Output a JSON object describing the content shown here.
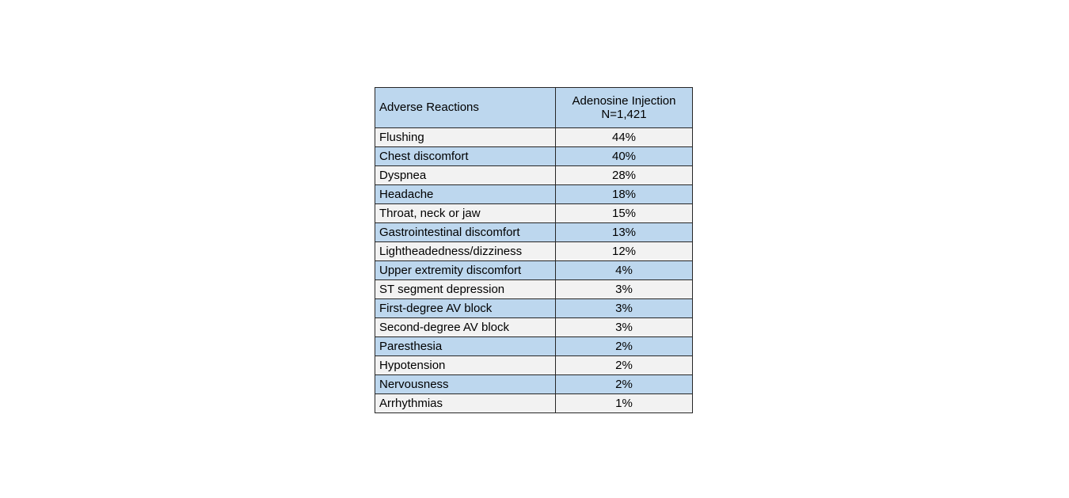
{
  "table": {
    "header": {
      "col1": "Adverse Reactions",
      "col2_line1": "Adenosine Injection",
      "col2_line2": "N=1,421"
    },
    "rows": [
      {
        "reaction": "Flushing",
        "value": "44%"
      },
      {
        "reaction": "Chest discomfort",
        "value": "40%"
      },
      {
        "reaction": "Dyspnea",
        "value": "28%"
      },
      {
        "reaction": "Headache",
        "value": "18%"
      },
      {
        "reaction": "Throat, neck or jaw",
        "value": "15%"
      },
      {
        "reaction": "Gastrointestinal discomfort",
        "value": "13%"
      },
      {
        "reaction": "Lightheadedness/dizziness",
        "value": "12%"
      },
      {
        "reaction": "Upper extremity discomfort",
        "value": "4%"
      },
      {
        "reaction": "ST segment depression",
        "value": "3%"
      },
      {
        "reaction": "First-degree AV block",
        "value": "3%"
      },
      {
        "reaction": "Second-degree AV block",
        "value": "3%"
      },
      {
        "reaction": "Paresthesia",
        "value": "2%"
      },
      {
        "reaction": "Hypotension",
        "value": "2%"
      },
      {
        "reaction": "Nervousness",
        "value": "2%"
      },
      {
        "reaction": "Arrhythmias",
        "value": "1%"
      }
    ],
    "colors": {
      "header_bg": "#bdd7ee",
      "stripe_blue": "#bdd7ee",
      "stripe_gray": "#f2f2f2",
      "border": "#262626"
    }
  },
  "chart_data": {
    "type": "table",
    "title": "Adverse Reactions — Adenosine Injection N=1,421",
    "columns": [
      "Adverse Reactions",
      "Adenosine Injection N=1,421"
    ],
    "categories": [
      "Flushing",
      "Chest discomfort",
      "Dyspnea",
      "Headache",
      "Throat, neck or jaw",
      "Gastrointestinal discomfort",
      "Lightheadedness/dizziness",
      "Upper extremity discomfort",
      "ST segment depression",
      "First-degree AV block",
      "Second-degree AV block",
      "Paresthesia",
      "Hypotension",
      "Nervousness",
      "Arrhythmias"
    ],
    "values": [
      44,
      40,
      28,
      18,
      15,
      13,
      12,
      4,
      3,
      3,
      3,
      2,
      2,
      2,
      1
    ],
    "value_unit": "%"
  }
}
